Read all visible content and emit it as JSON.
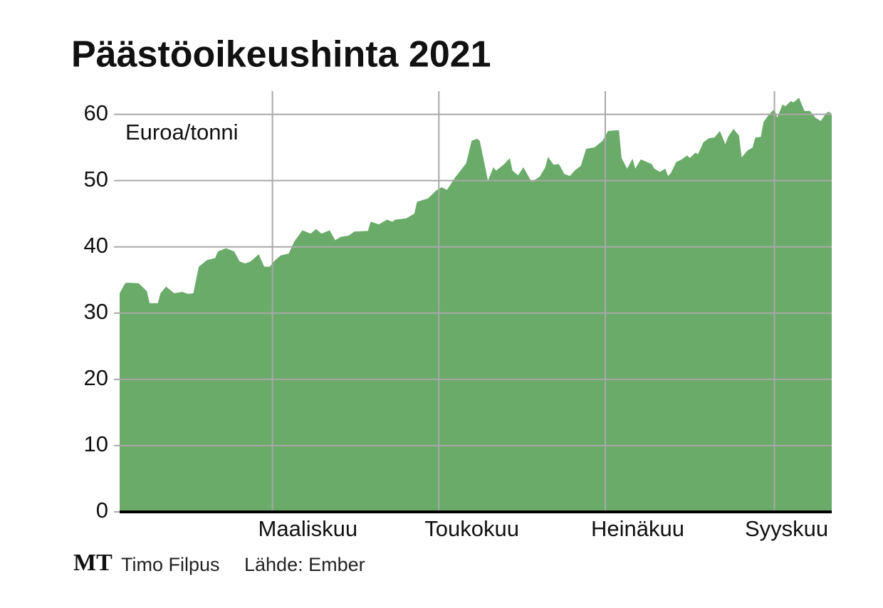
{
  "chart_data": {
    "type": "area",
    "title": "Päästöoikeushinta 2021",
    "y_label": "Euroa/tonni",
    "color": "#6aab6a",
    "grid": true,
    "x": [
      4,
      6,
      7,
      11,
      14,
      15,
      18,
      19,
      21,
      24,
      27,
      29,
      31,
      33,
      36,
      39,
      40,
      43,
      46,
      48,
      50,
      52,
      55,
      57,
      59,
      61,
      63,
      66,
      68,
      71,
      74,
      76,
      78,
      81,
      83,
      85,
      88,
      90,
      95,
      96,
      99,
      102,
      104,
      105,
      109,
      112,
      113,
      117,
      120,
      122,
      124,
      127,
      131,
      133,
      135,
      136,
      139,
      141,
      142,
      145,
      147,
      148,
      150,
      152,
      155,
      158,
      160,
      161,
      163,
      165,
      167,
      169,
      171,
      173,
      175,
      178,
      181,
      183,
      187,
      188,
      190,
      192,
      193,
      195,
      199,
      200,
      202,
      204,
      205,
      206,
      208,
      210,
      212,
      213,
      215,
      216,
      218,
      220,
      222,
      224,
      226,
      227,
      229,
      231,
      232,
      234,
      236,
      237,
      239,
      240,
      242,
      244,
      245,
      247,
      248,
      250,
      251,
      253,
      255,
      257,
      259,
      261,
      263,
      264,
      265
    ],
    "values": [
      33,
      34.5,
      34.6,
      34.5,
      33.3,
      31.5,
      31.5,
      33,
      34,
      33,
      33.2,
      32.9,
      33,
      37,
      38,
      38.3,
      39.3,
      39.8,
      39.3,
      37.8,
      37.5,
      37.8,
      38.9,
      37,
      37,
      38,
      38.7,
      39,
      40.8,
      42.5,
      42,
      42.7,
      42,
      42.5,
      41,
      41.5,
      41.7,
      42.3,
      42.4,
      43.8,
      43.4,
      44.1,
      43.8,
      44.1,
      44.3,
      45,
      46.8,
      47.3,
      48.5,
      49,
      48.6,
      50.5,
      52.6,
      56,
      56.3,
      56,
      50,
      52,
      51.5,
      52.5,
      53.4,
      51.5,
      50.8,
      52,
      49.8,
      50.6,
      52,
      53.6,
      52.4,
      52.5,
      51,
      50.7,
      51.6,
      52.2,
      54.8,
      55,
      56,
      57.5,
      57.6,
      53.4,
      51.8,
      53.3,
      51.8,
      53.2,
      52.5,
      51.8,
      51.3,
      51.8,
      50.7,
      51.1,
      52.8,
      53.2,
      53.8,
      53.4,
      54.2,
      54,
      55.8,
      56.4,
      56.5,
      57.5,
      55.5,
      56.6,
      57.8,
      56.8,
      53.5,
      54.5,
      55,
      56.5,
      56.6,
      58.8,
      60,
      60.8,
      59.5,
      61.5,
      61.2,
      62,
      61.8,
      62.5,
      60.5,
      60.5,
      59.5,
      59,
      60.2,
      60.4,
      60
    ],
    "xlim": [
      4,
      265
    ],
    "xticks": [
      {
        "value": 60,
        "label": "Maaliskuu"
      },
      {
        "value": 121,
        "label": "Toukokuu"
      },
      {
        "value": 182,
        "label": "Heinäkuu"
      },
      {
        "value": 244,
        "label": "Syyskuu"
      }
    ],
    "ylim": [
      0,
      63.5
    ],
    "yticks": [
      0,
      10,
      20,
      30,
      40,
      50,
      60
    ]
  },
  "footer": {
    "logo": "MT",
    "author": "Timo Filpus",
    "source": "Lähde: Ember"
  }
}
